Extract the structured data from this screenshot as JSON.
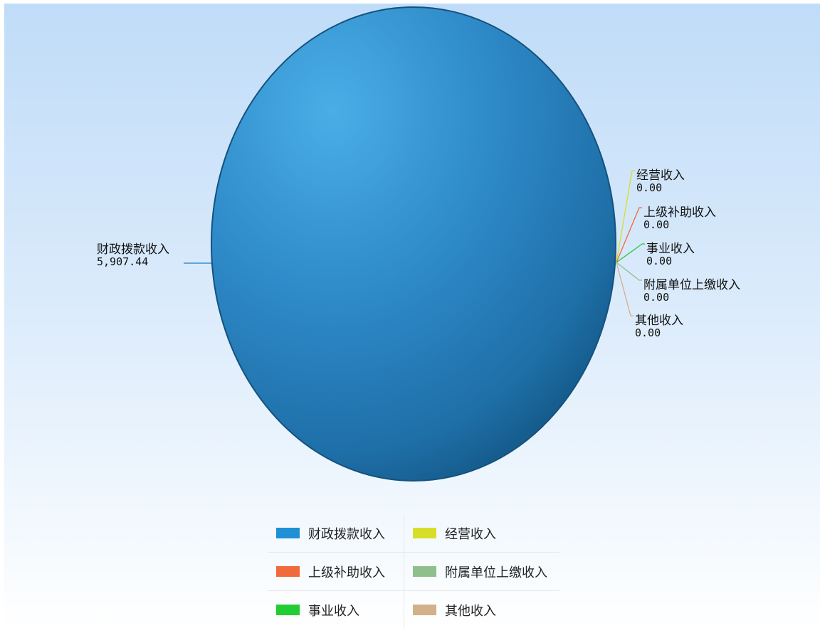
{
  "chart_data": {
    "type": "pie",
    "categories": [
      "财政拨款收入",
      "经营收入",
      "上级补助收入",
      "附属单位上缴收入",
      "事业收入",
      "其他收入"
    ],
    "values": [
      5907.44,
      0.0,
      0.0,
      0.0,
      0.0,
      0.0
    ],
    "value_labels": [
      "5,907.44",
      "0.00",
      "0.00",
      "0.00",
      "0.00",
      "0.00"
    ],
    "colors": [
      "#1f8fd6",
      "#d7de29",
      "#f06a3c",
      "#8fbf8a",
      "#22cc33",
      "#d2b08a"
    ],
    "legend": "bottom",
    "legend_order": [
      "财政拨款收入",
      "经营收入",
      "上级补助收入",
      "附属单位上缴收入",
      "事业收入",
      "其他收入"
    ]
  },
  "legend": {
    "items": [
      {
        "label": "财政拨款收入",
        "color": "#1f8fd6"
      },
      {
        "label": "经营收入",
        "color": "#d7de29"
      },
      {
        "label": "上级补助收入",
        "color": "#f06a3c"
      },
      {
        "label": "附属单位上缴收入",
        "color": "#8fbf8a"
      },
      {
        "label": "事业收入",
        "color": "#22cc33"
      },
      {
        "label": "其他收入",
        "color": "#d2b08a"
      }
    ]
  }
}
